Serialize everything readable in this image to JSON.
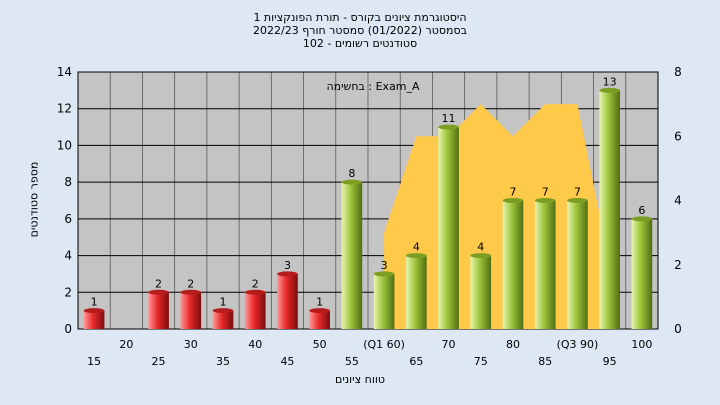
{
  "chart_data": {
    "type": "bar",
    "title": [
      "היסטוגרמת ציונים בקורס - תורת הפונקציות 1",
      "בסמסטר  (01/2022)  סמסטר חורף  2022/23",
      "סטודנטים רשומים - 102"
    ],
    "xlabel": "טווח ציונים",
    "ylabel": "מספר סטודנטים",
    "annotation": "בחשימה : Exam_A",
    "ylim": [
      0,
      14
    ],
    "yticks": [
      0,
      2,
      4,
      6,
      8,
      10,
      12,
      14
    ],
    "y2lim": [
      0,
      8
    ],
    "y2ticks": [
      0,
      2,
      4,
      6,
      8
    ],
    "x_tick_labels": [
      "15",
      "20",
      "25",
      "30",
      "35",
      "40",
      "45",
      "50",
      "55",
      "(Q1 60)",
      "65",
      "70",
      "75",
      "80",
      "85",
      "(Q3 90)",
      "95",
      "100"
    ],
    "series": [
      {
        "kind": "bar",
        "color_low": "#e8282a",
        "color_high": "#9cc43a",
        "values": [
          1,
          0,
          2,
          2,
          1,
          2,
          3,
          1,
          8,
          3,
          4,
          11,
          4,
          7,
          7,
          7,
          13,
          6
        ],
        "value_labels": [
          "1",
          "",
          "2",
          "2",
          "1",
          "2",
          "3",
          "1",
          "8",
          "3",
          "4",
          "11",
          "4",
          "7",
          "7",
          "7",
          "13",
          "6"
        ]
      },
      {
        "kind": "area",
        "color": "#ffc94a",
        "axis": "right",
        "values": [
          null,
          null,
          null,
          null,
          null,
          null,
          null,
          null,
          null,
          3,
          6,
          6,
          7,
          6,
          7,
          7,
          2,
          null
        ]
      }
    ],
    "grid": true,
    "legend": "none",
    "colors": {
      "page_bg": "#dde8f4",
      "plot_bg": "#c4c4c4",
      "grid": "#000000"
    }
  }
}
